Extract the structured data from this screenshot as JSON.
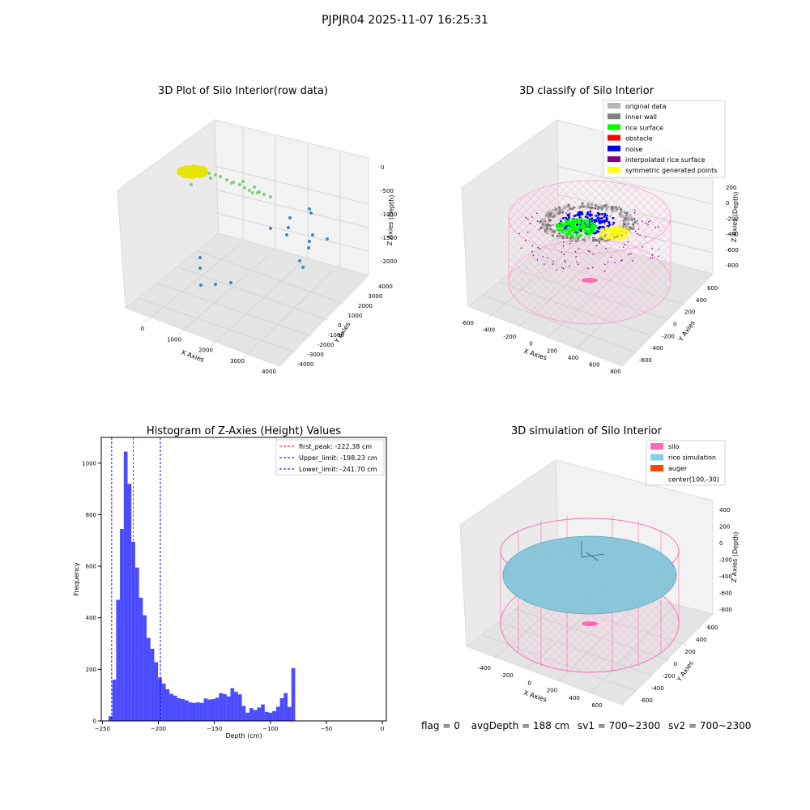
{
  "figure_title": "PJPJR04 2025-11-07 16:25:31",
  "chart_data": [
    {
      "type": "scatter3d",
      "title": "3D Plot of Silo Interior(row data)",
      "xlabel": "X Axies",
      "ylabel": "Y Axies",
      "zlabel": "Z Axies (Depth)",
      "xticks": [
        "0",
        "1000",
        "2000",
        "3000",
        "4000"
      ],
      "yticks": [
        "-4000",
        "-3000",
        "-2000",
        "-1000",
        "0",
        "1000",
        "2000",
        "3000",
        "4000"
      ],
      "zticks": [
        "0",
        "-500",
        "-1000",
        "-1500",
        "-2000"
      ],
      "colors": {
        "cluster": "#e6e400",
        "mid": "#7fd07a",
        "far": "#3b8bba"
      }
    },
    {
      "type": "scatter3d",
      "title": "3D classify of Silo Interior",
      "xlabel": "X Axies",
      "ylabel": "Y Axies",
      "zlabel": "Z Axies (Depth)",
      "xticks": [
        "-600",
        "-400",
        "-200",
        "0",
        "200",
        "400",
        "600",
        "800"
      ],
      "yticks": [
        "-600",
        "-400",
        "-200",
        "0",
        "200",
        "400",
        "600"
      ],
      "zticks": [
        "200",
        "0",
        "-200",
        "-400",
        "-600",
        "-800"
      ],
      "legend": [
        {
          "label": "original data",
          "color": "#b5b5b5"
        },
        {
          "label": "inner wall",
          "color": "#808080"
        },
        {
          "label": "rice surface",
          "color": "#00ff00"
        },
        {
          "label": "obstacle",
          "color": "#ff0000"
        },
        {
          "label": "noise",
          "color": "#0000ee"
        },
        {
          "label": "interpolated rice surface",
          "color": "#800080"
        },
        {
          "label": "symmetric generated points",
          "color": "#ffff00"
        }
      ]
    },
    {
      "type": "bar",
      "title": "Histogram of Z-Axies (Height) Values",
      "xlabel": "Depth (cm)",
      "ylabel": "Frequency",
      "xlim": [
        -251,
        3.5
      ],
      "ylim": [
        0,
        1100
      ],
      "xticks": [
        -250,
        -200,
        -150,
        -100,
        -50,
        0
      ],
      "xtick_labels": [
        "−250",
        "−200",
        "−150",
        "−100",
        "−50",
        "0"
      ],
      "yticks": [
        0,
        200,
        400,
        600,
        800,
        1000
      ],
      "bin_start": -244.5,
      "bin_width": 3.4,
      "values": [
        18,
        160,
        470,
        745,
        1045,
        920,
        695,
        595,
        478,
        410,
        322,
        280,
        228,
        168,
        145,
        123,
        105,
        98,
        88,
        85,
        80,
        72,
        70,
        72,
        70,
        87,
        83,
        85,
        90,
        108,
        104,
        95,
        127,
        113,
        103,
        58,
        32,
        50,
        42,
        52,
        64,
        35,
        32,
        38,
        55,
        88,
        108,
        54,
        205
      ],
      "bar_color": "#0000ff",
      "vlines": [
        {
          "label": "first_peak: -222.38 cm",
          "x": -222.38,
          "color": "#ff0000"
        },
        {
          "label": "Upper_limit: -198.23 cm",
          "x": -198.23,
          "color": "#0000cc"
        },
        {
          "label": "Lower_limit: -241.70 cm",
          "x": -241.7,
          "color": "#0000cc"
        }
      ],
      "legend_position": "top-right"
    },
    {
      "type": "surface3d",
      "title": "3D simulation of Silo Interior",
      "xlabel": "X Axies",
      "ylabel": "Y Axies",
      "zlabel": "Z Axies (Depth)",
      "xticks": [
        "-400",
        "-200",
        "0",
        "200",
        "400",
        "600"
      ],
      "yticks": [
        "-600",
        "-400",
        "-200",
        "0",
        "200",
        "400",
        "600"
      ],
      "zticks": [
        "400",
        "200",
        "0",
        "-200",
        "-400",
        "-600",
        "-800"
      ],
      "legend": [
        {
          "label": "silo",
          "color": "#ff69b4"
        },
        {
          "label": "rice simulation",
          "color": "#87ceeb"
        },
        {
          "label": "auger",
          "color": "#ff4500"
        },
        {
          "label": "center(100,-30)",
          "color": ""
        }
      ]
    }
  ],
  "stats": {
    "flag": "flag = 0",
    "avg_depth": "avgDepth = 188 cm",
    "sv1": "sv1 = 700~2300",
    "sv2": "sv2 = 700~2300"
  }
}
